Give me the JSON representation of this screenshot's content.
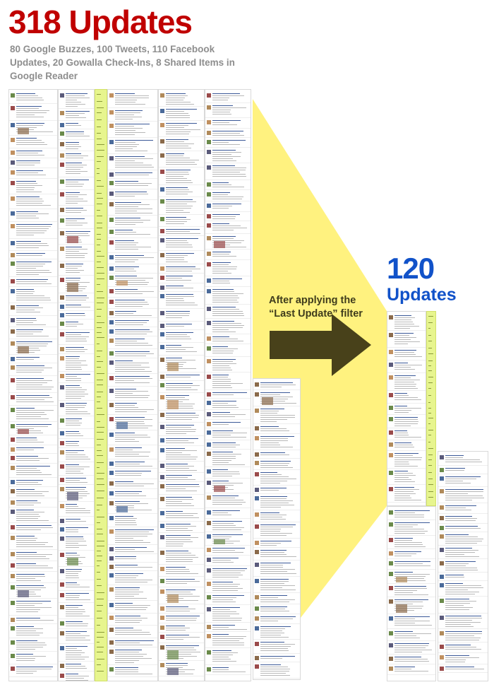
{
  "header": {
    "title": "318 Updates",
    "subtitle": "80 Google Buzzes, 100 Tweets, 110 Facebook Updates, 20 Gowalla Check-Ins, 8 Shared Items in Google Reader"
  },
  "arrow": {
    "caption": "After applying the “Last Update” filter"
  },
  "result": {
    "count": "120",
    "label": "Updates"
  },
  "colors": {
    "title_red": "#c00000",
    "subtitle_gray": "#8e8e8e",
    "result_blue": "#1152c9",
    "wedge_yellow": "#fff27f",
    "arrow_olive": "#48411a",
    "sidebar_green": "#e7f58e"
  }
}
